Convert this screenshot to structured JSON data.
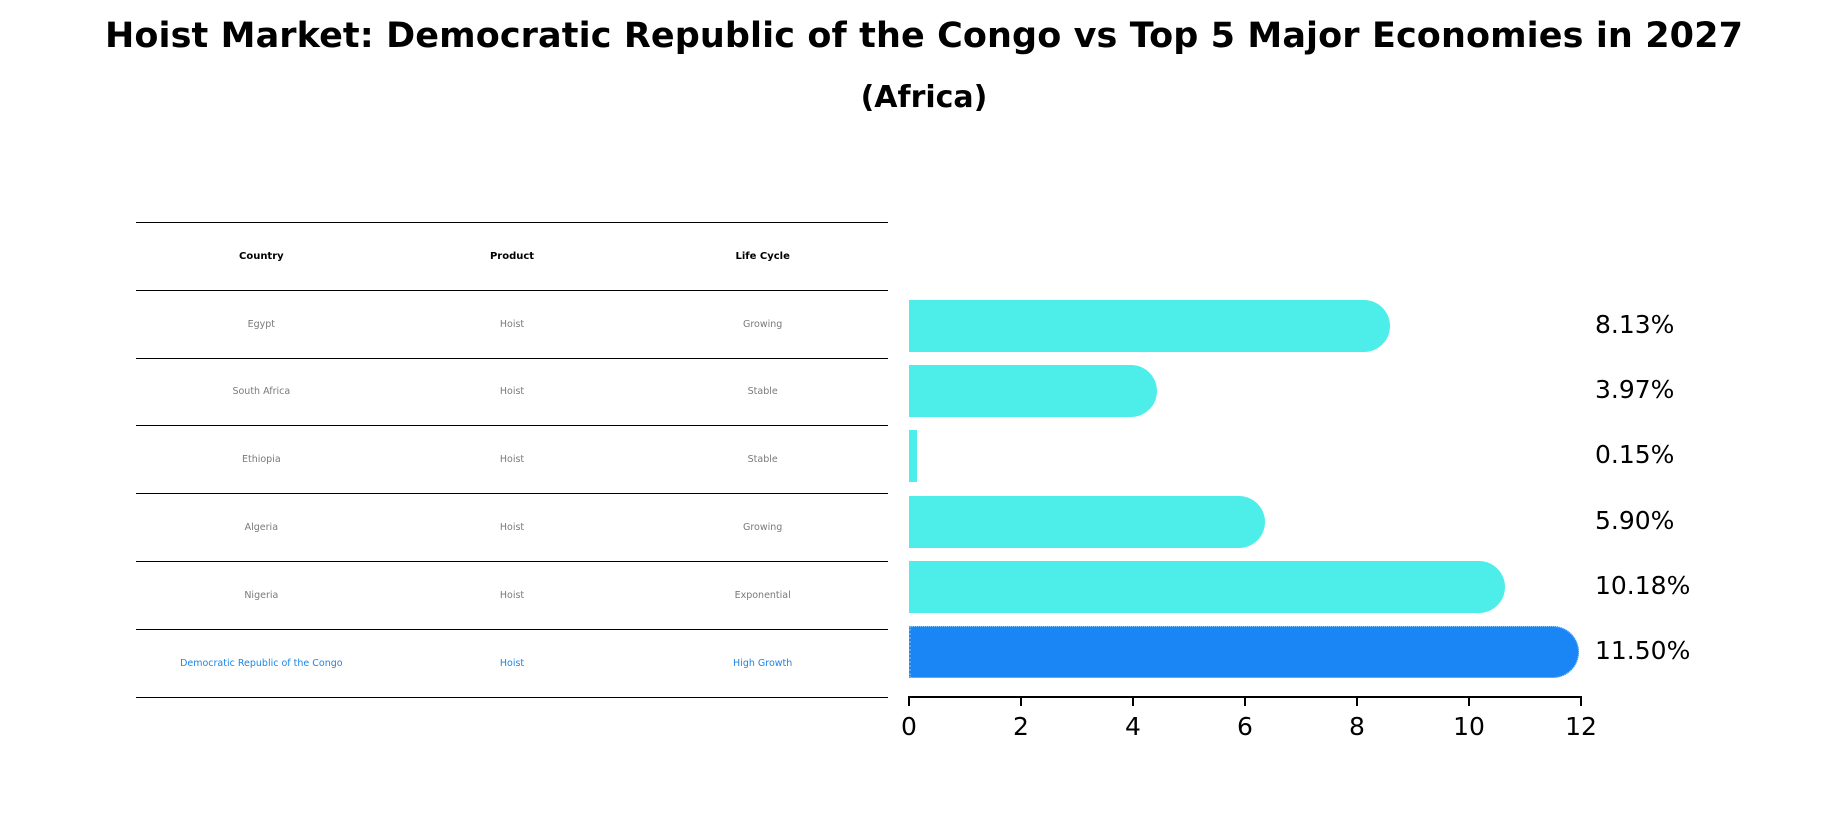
{
  "title": "Hoist Market: Democratic Republic of the Congo vs Top 5 Major Economies in 2027",
  "subtitle": "(Africa)",
  "table": {
    "headers": [
      "Country",
      "Product",
      "Life Cycle"
    ],
    "rows": [
      {
        "country": "Egypt",
        "product": "Hoist",
        "life_cycle": "Growing"
      },
      {
        "country": "South Africa",
        "product": "Hoist",
        "life_cycle": "Stable"
      },
      {
        "country": "Ethiopia",
        "product": "Hoist",
        "life_cycle": "Stable"
      },
      {
        "country": "Algeria",
        "product": "Hoist",
        "life_cycle": "Growing"
      },
      {
        "country": "Nigeria",
        "product": "Hoist",
        "life_cycle": "Exponential"
      },
      {
        "country": "Democratic Republic of the Congo",
        "product": "Hoist",
        "life_cycle": "High Growth"
      }
    ]
  },
  "colors": {
    "bar": "#4deeea",
    "highlight_bar": "#1a85f5",
    "highlight_text": "#1b85e8",
    "table_text": "#7a7a7a"
  },
  "chart_data": {
    "type": "bar",
    "orientation": "horizontal",
    "title": "Hoist Market: Democratic Republic of the Congo vs Top 5 Major Economies in 2027",
    "subtitle": "(Africa)",
    "categories": [
      "Egypt",
      "South Africa",
      "Ethiopia",
      "Algeria",
      "Nigeria",
      "Democratic Republic of the Congo"
    ],
    "values": [
      8.13,
      3.97,
      0.15,
      5.9,
      10.18,
      11.5
    ],
    "value_labels": [
      "8.13%",
      "3.97%",
      "0.15%",
      "5.90%",
      "10.18%",
      "11.50%"
    ],
    "highlight": "Democratic Republic of the Congo",
    "xlabel": "",
    "ylabel": "",
    "xlim": [
      0,
      12
    ],
    "xticks": [
      "0",
      "2",
      "4",
      "6",
      "8",
      "10",
      "12"
    ],
    "grid": false,
    "legend": null
  }
}
